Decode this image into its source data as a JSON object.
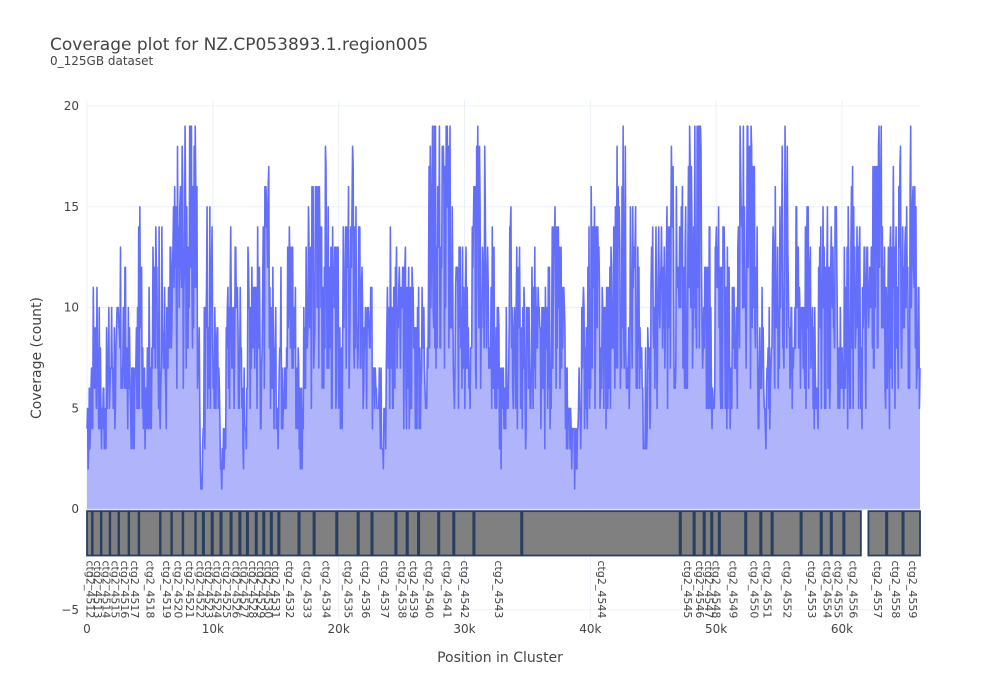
{
  "chart_data": {
    "type": "area",
    "title": "Coverage plot for NZ.CP053893.1.region005",
    "subtitle": "0_125GB dataset",
    "xlabel": "Position in Cluster",
    "ylabel": "Coverage (count)",
    "xlim": [
      0,
      66200
    ],
    "ylim": [
      -5.5,
      20.3
    ],
    "x_ticks": [
      0,
      10000,
      20000,
      30000,
      40000,
      50000,
      60000
    ],
    "x_tick_labels": [
      "0",
      "10k",
      "20k",
      "30k",
      "40k",
      "50k",
      "60k"
    ],
    "y_ticks": [
      -5,
      0,
      5,
      10,
      15,
      20
    ],
    "y_tick_labels": [
      "−5",
      "0",
      "5",
      "10",
      "15",
      "20"
    ],
    "grid": true,
    "colors": {
      "line": "#636efa",
      "fill": "#b0b5fb",
      "gene_fill": "#808080",
      "gene_stroke": "#2a3f5f",
      "grid": "#ebf0f8"
    },
    "coverage_peaks": [
      {
        "x": 0,
        "y": 3
      },
      {
        "x": 500,
        "y": 8
      },
      {
        "x": 700,
        "y": 11
      },
      {
        "x": 1200,
        "y": 5
      },
      {
        "x": 2000,
        "y": 9
      },
      {
        "x": 2300,
        "y": 7
      },
      {
        "x": 2800,
        "y": 10
      },
      {
        "x": 3100,
        "y": 9
      },
      {
        "x": 3700,
        "y": 5
      },
      {
        "x": 4200,
        "y": 11
      },
      {
        "x": 4800,
        "y": 7
      },
      {
        "x": 5600,
        "y": 12
      },
      {
        "x": 6300,
        "y": 8
      },
      {
        "x": 7100,
        "y": 13
      },
      {
        "x": 7700,
        "y": 15
      },
      {
        "x": 8300,
        "y": 14
      },
      {
        "x": 8600,
        "y": 18
      },
      {
        "x": 9100,
        "y": 1
      },
      {
        "x": 9500,
        "y": 12
      },
      {
        "x": 10200,
        "y": 9
      },
      {
        "x": 10800,
        "y": 2
      },
      {
        "x": 11200,
        "y": 10
      },
      {
        "x": 12000,
        "y": 12
      },
      {
        "x": 12400,
        "y": 4
      },
      {
        "x": 13100,
        "y": 14
      },
      {
        "x": 13700,
        "y": 9
      },
      {
        "x": 14400,
        "y": 13
      },
      {
        "x": 15000,
        "y": 7
      },
      {
        "x": 15600,
        "y": 10
      },
      {
        "x": 16300,
        "y": 12
      },
      {
        "x": 17000,
        "y": 5
      },
      {
        "x": 17600,
        "y": 11
      },
      {
        "x": 18200,
        "y": 13
      },
      {
        "x": 18600,
        "y": 15
      },
      {
        "x": 19300,
        "y": 11
      },
      {
        "x": 20000,
        "y": 9
      },
      {
        "x": 20600,
        "y": 11
      },
      {
        "x": 21200,
        "y": 14
      },
      {
        "x": 21900,
        "y": 9
      },
      {
        "x": 22500,
        "y": 8
      },
      {
        "x": 23000,
        "y": 10
      },
      {
        "x": 23600,
        "y": 5
      },
      {
        "x": 24200,
        "y": 12
      },
      {
        "x": 25000,
        "y": 9
      },
      {
        "x": 25700,
        "y": 10
      },
      {
        "x": 26400,
        "y": 8
      },
      {
        "x": 27000,
        "y": 10
      },
      {
        "x": 27600,
        "y": 19
      },
      {
        "x": 28100,
        "y": 15
      },
      {
        "x": 28500,
        "y": 16
      },
      {
        "x": 29200,
        "y": 11
      },
      {
        "x": 29800,
        "y": 11
      },
      {
        "x": 30400,
        "y": 9
      },
      {
        "x": 31100,
        "y": 14
      },
      {
        "x": 31700,
        "y": 13
      },
      {
        "x": 32300,
        "y": 10
      },
      {
        "x": 33000,
        "y": 5
      },
      {
        "x": 33600,
        "y": 11
      },
      {
        "x": 34200,
        "y": 10
      },
      {
        "x": 34900,
        "y": 8
      },
      {
        "x": 35500,
        "y": 10
      },
      {
        "x": 36200,
        "y": 7
      },
      {
        "x": 36800,
        "y": 10
      },
      {
        "x": 37500,
        "y": 11
      },
      {
        "x": 38200,
        "y": 5
      },
      {
        "x": 38800,
        "y": 3
      },
      {
        "x": 39500,
        "y": 9
      },
      {
        "x": 40200,
        "y": 12
      },
      {
        "x": 40900,
        "y": 9
      },
      {
        "x": 41600,
        "y": 10
      },
      {
        "x": 42300,
        "y": 14
      },
      {
        "x": 43000,
        "y": 13
      },
      {
        "x": 43600,
        "y": 11
      },
      {
        "x": 44300,
        "y": 6
      },
      {
        "x": 45000,
        "y": 11
      },
      {
        "x": 45700,
        "y": 10
      },
      {
        "x": 46400,
        "y": 13
      },
      {
        "x": 47100,
        "y": 11
      },
      {
        "x": 47800,
        "y": 14
      },
      {
        "x": 48400,
        "y": 16
      },
      {
        "x": 49100,
        "y": 12
      },
      {
        "x": 49800,
        "y": 10
      },
      {
        "x": 50500,
        "y": 11
      },
      {
        "x": 51200,
        "y": 8
      },
      {
        "x": 51900,
        "y": 14
      },
      {
        "x": 52600,
        "y": 15
      },
      {
        "x": 53300,
        "y": 11
      },
      {
        "x": 54000,
        "y": 7
      },
      {
        "x": 54700,
        "y": 12
      },
      {
        "x": 55300,
        "y": 16
      },
      {
        "x": 56000,
        "y": 11
      },
      {
        "x": 56700,
        "y": 12
      },
      {
        "x": 57400,
        "y": 11
      },
      {
        "x": 58100,
        "y": 9
      },
      {
        "x": 58800,
        "y": 12
      },
      {
        "x": 59500,
        "y": 11
      },
      {
        "x": 60100,
        "y": 9
      },
      {
        "x": 60800,
        "y": 12
      },
      {
        "x": 61500,
        "y": 10
      },
      {
        "x": 62200,
        "y": 11
      },
      {
        "x": 62900,
        "y": 16
      },
      {
        "x": 63600,
        "y": 9
      },
      {
        "x": 64300,
        "y": 14
      },
      {
        "x": 65000,
        "y": 12
      },
      {
        "x": 65600,
        "y": 14
      },
      {
        "x": 66200,
        "y": 7
      }
    ],
    "genes": [
      {
        "label": "ctg2_4512",
        "start": 0,
        "end": 400
      },
      {
        "label": "ctg2_4513",
        "start": 450,
        "end": 1100
      },
      {
        "label": "ctg2_4514",
        "start": 1150,
        "end": 1800
      },
      {
        "label": "ctg2_4515",
        "start": 1850,
        "end": 2500
      },
      {
        "label": "ctg2_4516",
        "start": 2550,
        "end": 3300
      },
      {
        "label": "ctg2_4517",
        "start": 3350,
        "end": 4100
      },
      {
        "label": "ctg2_4518",
        "start": 4150,
        "end": 5800
      },
      {
        "label": "ctg2_4519",
        "start": 5850,
        "end": 6700
      },
      {
        "label": "ctg2_4520",
        "start": 6750,
        "end": 7600
      },
      {
        "label": "ctg2_4521",
        "start": 7650,
        "end": 8600
      },
      {
        "label": "ctg2_4522",
        "start": 8650,
        "end": 9200
      },
      {
        "label": "ctg2_4523",
        "start": 9300,
        "end": 9900
      },
      {
        "label": "ctg2_4524",
        "start": 10000,
        "end": 10600
      },
      {
        "label": "ctg2_4525",
        "start": 10700,
        "end": 11400
      },
      {
        "label": "ctg2_4526",
        "start": 11500,
        "end": 12100
      },
      {
        "label": "ctg2_4527",
        "start": 12200,
        "end": 12700
      },
      {
        "label": "ctg2_4528",
        "start": 12800,
        "end": 13400
      },
      {
        "label": "ctg2_4529",
        "start": 13500,
        "end": 14000
      },
      {
        "label": "ctg2_4530",
        "start": 14100,
        "end": 14600
      },
      {
        "label": "ctg2_4531",
        "start": 14700,
        "end": 15200
      },
      {
        "label": "ctg2_4532",
        "start": 15300,
        "end": 16800
      },
      {
        "label": "ctg2_4533",
        "start": 16900,
        "end": 18000
      },
      {
        "label": "ctg2_4534",
        "start": 18100,
        "end": 19800
      },
      {
        "label": "ctg2_4535",
        "start": 19900,
        "end": 21500
      },
      {
        "label": "ctg2_4536",
        "start": 21600,
        "end": 22600
      },
      {
        "label": "ctg2_4537",
        "start": 22700,
        "end": 24500
      },
      {
        "label": "ctg2_4538",
        "start": 24600,
        "end": 25400
      },
      {
        "label": "ctg2_4539",
        "start": 25500,
        "end": 26300
      },
      {
        "label": "ctg2_4540",
        "start": 26400,
        "end": 27900
      },
      {
        "label": "ctg2_4541",
        "start": 28000,
        "end": 29100
      },
      {
        "label": "ctg2_4542",
        "start": 29200,
        "end": 30700
      },
      {
        "label": "ctg2_4543",
        "start": 30800,
        "end": 34500
      },
      {
        "label": "ctg2_4544",
        "start": 34600,
        "end": 47100
      },
      {
        "label": "ctg2_4545",
        "start": 47200,
        "end": 48200
      },
      {
        "label": "ctg2_4546",
        "start": 48300,
        "end": 49000
      },
      {
        "label": "ctg2_4547",
        "start": 49100,
        "end": 49600
      },
      {
        "label": "ctg2_4548",
        "start": 49700,
        "end": 50200
      },
      {
        "label": "ctg2_4549",
        "start": 50300,
        "end": 52300
      },
      {
        "label": "ctg2_4550",
        "start": 52400,
        "end": 53500
      },
      {
        "label": "ctg2_4551",
        "start": 53600,
        "end": 54400
      },
      {
        "label": "ctg2_4552",
        "start": 54500,
        "end": 56700
      },
      {
        "label": "ctg2_4553",
        "start": 56800,
        "end": 58300
      },
      {
        "label": "ctg2_4554",
        "start": 58400,
        "end": 59100
      },
      {
        "label": "ctg2_4555",
        "start": 59200,
        "end": 60100
      },
      {
        "label": "ctg2_4556",
        "start": 60200,
        "end": 61500
      },
      {
        "label": "ctg2_4557",
        "start": 62100,
        "end": 63500
      },
      {
        "label": "ctg2_4558",
        "start": 63600,
        "end": 64800
      },
      {
        "label": "ctg2_4559",
        "start": 64900,
        "end": 66200
      }
    ]
  }
}
